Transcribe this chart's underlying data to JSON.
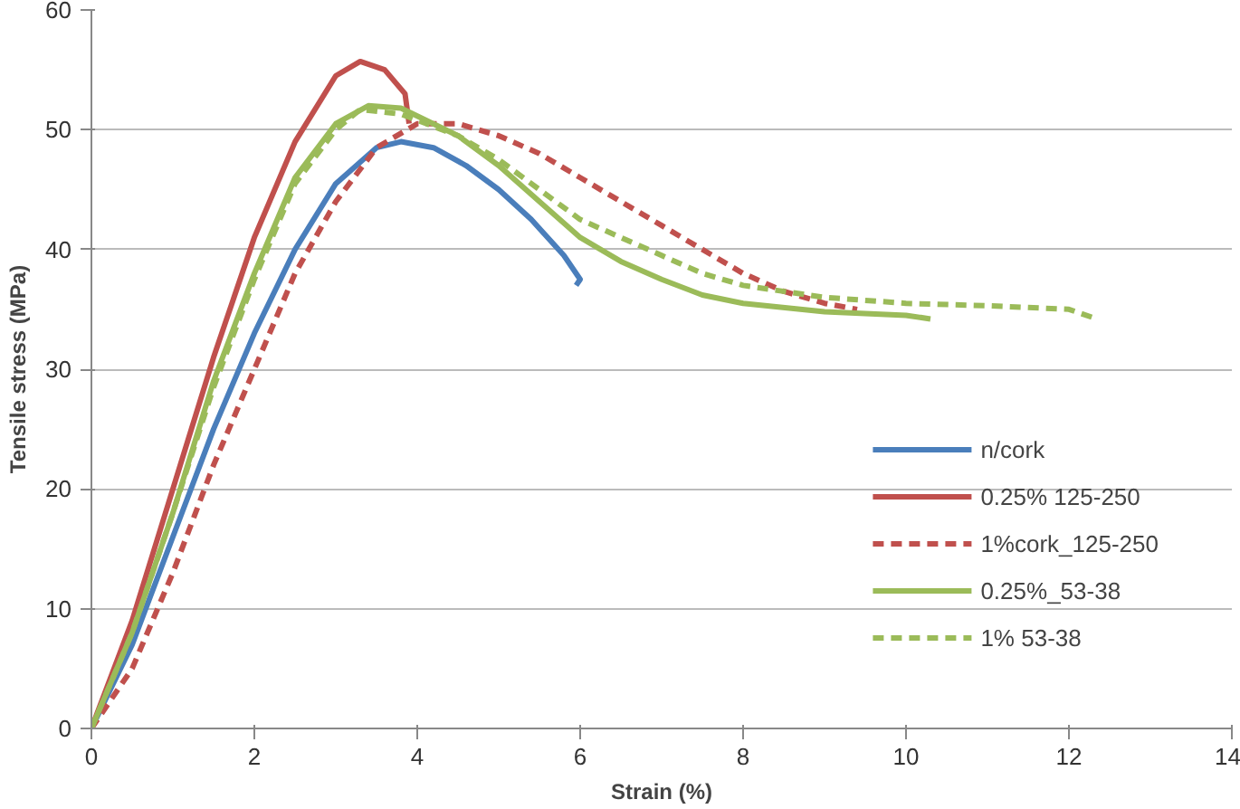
{
  "chart_data": {
    "type": "line",
    "xlabel": "Strain (%)",
    "ylabel": "Tensile stress (MPa)",
    "xlim": [
      0,
      14
    ],
    "ylim": [
      0,
      60
    ],
    "xticks": [
      0,
      2,
      4,
      6,
      8,
      10,
      12,
      14
    ],
    "yticks": [
      0,
      10,
      20,
      30,
      40,
      50,
      60
    ],
    "grid": "y",
    "legend": "bottom right",
    "marker": "none",
    "series": [
      {
        "name": "n/cork",
        "color": "#4a7ebb",
        "line_style": "solid",
        "x": [
          0,
          0.5,
          1,
          1.5,
          2,
          2.5,
          3,
          3.5,
          3.8,
          4.2,
          4.6,
          5,
          5.4,
          5.8,
          6,
          5.95
        ],
        "values": [
          0,
          7,
          16,
          25,
          33,
          40,
          45.5,
          48.5,
          49,
          48.5,
          47,
          45,
          42.5,
          39.5,
          37.5,
          37
        ]
      },
      {
        "name": "0.25% 125-250",
        "color": "#c0504d",
        "line_style": "solid",
        "x": [
          0,
          0.5,
          1,
          1.5,
          2,
          2.5,
          3,
          3.3,
          3.6,
          3.85,
          3.9
        ],
        "values": [
          0,
          9,
          20,
          31,
          41,
          49,
          54.5,
          55.7,
          55,
          53,
          50.5
        ]
      },
      {
        "name": "1%cork_125-250",
        "color": "#c0504d",
        "line_style": "dashed",
        "x": [
          0,
          0.5,
          1,
          1.5,
          2,
          2.5,
          3,
          3.5,
          4,
          4.5,
          5,
          5.5,
          6,
          6.5,
          7,
          7.5,
          8,
          8.5,
          9,
          9.4
        ],
        "values": [
          0,
          5,
          13,
          22,
          30,
          38,
          44,
          48.5,
          50.5,
          50.5,
          49.5,
          48,
          46,
          44,
          42,
          40,
          38,
          36.5,
          35.5,
          35
        ]
      },
      {
        "name": "0.25%_53-38",
        "color": "#9bbb59",
        "line_style": "solid",
        "x": [
          0,
          0.5,
          1,
          1.5,
          2,
          2.5,
          3,
          3.4,
          3.8,
          4.5,
          5,
          5.5,
          6,
          6.5,
          7,
          7.5,
          8,
          9,
          10,
          10.3
        ],
        "values": [
          0,
          8,
          18,
          29,
          38,
          46,
          50.5,
          52,
          51.8,
          49.5,
          47,
          44,
          41,
          39,
          37.5,
          36.2,
          35.5,
          34.8,
          34.5,
          34.2
        ]
      },
      {
        "name": "1% 53-38",
        "color": "#9bbb59",
        "line_style": "dashed",
        "x": [
          0,
          0.5,
          1,
          1.5,
          2,
          2.5,
          3,
          3.3,
          3.8,
          4.5,
          5,
          5.5,
          6,
          6.5,
          7,
          7.5,
          8,
          9,
          10,
          11,
          12,
          12.3
        ],
        "values": [
          0,
          8,
          18,
          28.5,
          37.5,
          45.5,
          50,
          51.7,
          51.3,
          49.5,
          47.5,
          45,
          42.5,
          41,
          39.5,
          38,
          37,
          36,
          35.5,
          35.3,
          35,
          34.3
        ]
      }
    ]
  }
}
